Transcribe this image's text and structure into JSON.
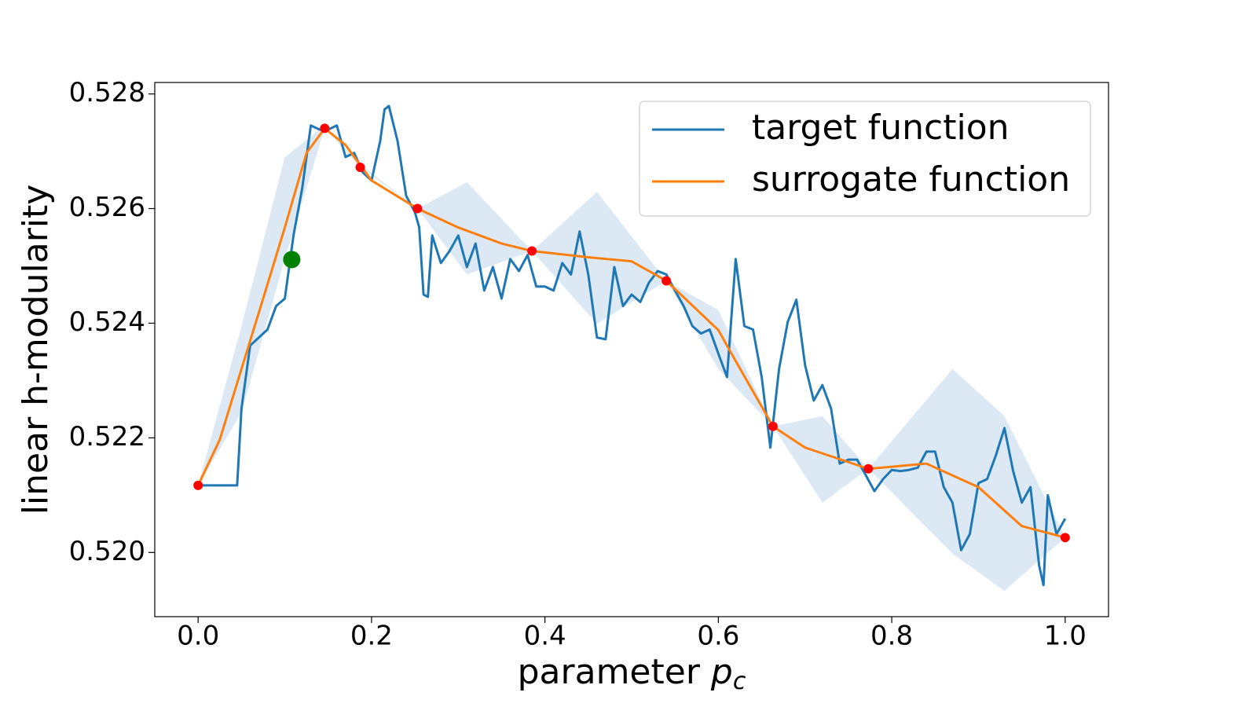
{
  "chart_data": {
    "type": "line",
    "ylabel": "linear h-modularity",
    "xlabel": {
      "text": "parameter",
      "var": "p",
      "sub": "c"
    },
    "xlim": [
      -0.05,
      1.05
    ],
    "ylim": [
      0.51888,
      0.5282
    ],
    "xticks": [
      {
        "value": 0,
        "label": "0.0"
      },
      0.2,
      0.4,
      0.6,
      0.8,
      {
        "value": 1,
        "label": "1.0"
      }
    ],
    "yticks": [
      {
        "value": 0.52,
        "label": "0.520"
      },
      0.522,
      0.524,
      0.526,
      0.528
    ],
    "grid": false,
    "legend": "upper right",
    "band": {
      "color": "#dce9f5",
      "x": [
        0,
        0.05,
        0.1,
        0.146,
        0.187,
        0.253,
        0.31,
        0.385,
        0.46,
        0.54,
        0.6,
        0.663,
        0.72,
        0.773,
        0.87,
        0.93,
        1.0
      ],
      "upper": [
        0.52117,
        0.52395,
        0.5269,
        0.52745,
        0.52677,
        0.526,
        0.52646,
        0.52526,
        0.52629,
        0.52474,
        0.52423,
        0.5222,
        0.52238,
        0.52146,
        0.5232,
        0.52238,
        0.52026
      ],
      "lower": [
        0.52117,
        0.52244,
        0.52512,
        0.5274,
        0.52672,
        0.526,
        0.52485,
        0.52526,
        0.52399,
        0.52474,
        0.5232,
        0.5222,
        0.52087,
        0.52146,
        0.51998,
        0.51933,
        0.52026
      ]
    },
    "series": [
      {
        "name": "target function",
        "color": "#1f77b4",
        "x": [
          0,
          0.045,
          0.05,
          0.06,
          0.07,
          0.08,
          0.09,
          0.1,
          0.105,
          0.11,
          0.12,
          0.13,
          0.14,
          0.15,
          0.16,
          0.17,
          0.18,
          0.19,
          0.2,
          0.21,
          0.215,
          0.22,
          0.23,
          0.24,
          0.25,
          0.255,
          0.26,
          0.265,
          0.27,
          0.28,
          0.29,
          0.3,
          0.31,
          0.32,
          0.33,
          0.34,
          0.35,
          0.36,
          0.37,
          0.38,
          0.39,
          0.4,
          0.41,
          0.42,
          0.43,
          0.44,
          0.45,
          0.46,
          0.47,
          0.48,
          0.49,
          0.5,
          0.51,
          0.52,
          0.53,
          0.54,
          0.55,
          0.56,
          0.57,
          0.58,
          0.59,
          0.6,
          0.61,
          0.62,
          0.63,
          0.64,
          0.65,
          0.66,
          0.67,
          0.68,
          0.69,
          0.7,
          0.71,
          0.72,
          0.73,
          0.74,
          0.75,
          0.76,
          0.77,
          0.78,
          0.79,
          0.8,
          0.81,
          0.82,
          0.83,
          0.84,
          0.85,
          0.86,
          0.87,
          0.88,
          0.89,
          0.9,
          0.91,
          0.92,
          0.93,
          0.94,
          0.95,
          0.96,
          0.97,
          0.975,
          0.98,
          0.99,
          1.0
        ],
        "values": [
          0.52117,
          0.52117,
          0.52251,
          0.52361,
          0.52375,
          0.52389,
          0.5243,
          0.52443,
          0.52498,
          0.52553,
          0.52635,
          0.52745,
          0.52738,
          0.52738,
          0.52745,
          0.5269,
          0.52697,
          0.52663,
          0.52649,
          0.52718,
          0.52773,
          0.52779,
          0.52718,
          0.52622,
          0.52594,
          0.52567,
          0.5245,
          0.52446,
          0.52553,
          0.52505,
          0.52526,
          0.52553,
          0.52498,
          0.52539,
          0.52457,
          0.52498,
          0.52443,
          0.52512,
          0.52491,
          0.52519,
          0.52464,
          0.52464,
          0.52457,
          0.52505,
          0.52485,
          0.5256,
          0.52485,
          0.52375,
          0.52372,
          0.52498,
          0.5243,
          0.5245,
          0.52437,
          0.52471,
          0.52491,
          0.52485,
          0.52457,
          0.5243,
          0.52395,
          0.52382,
          0.52389,
          0.52347,
          0.52306,
          0.52512,
          0.52395,
          0.52389,
          0.52306,
          0.52183,
          0.5232,
          0.52402,
          0.52441,
          0.52327,
          0.52265,
          0.52292,
          0.52251,
          0.52155,
          0.52162,
          0.52162,
          0.52135,
          0.52107,
          0.52128,
          0.52144,
          0.52142,
          0.52144,
          0.52148,
          0.52176,
          0.52176,
          0.52114,
          0.52087,
          0.52004,
          0.52032,
          0.52121,
          0.52128,
          0.52169,
          0.52217,
          0.52142,
          0.52087,
          0.52114,
          0.51977,
          0.51943,
          0.521,
          0.52032,
          0.52059
        ]
      },
      {
        "name": "surrogate function",
        "color": "#ff7f0e",
        "x": [
          0,
          0.025,
          0.05,
          0.075,
          0.1,
          0.125,
          0.146,
          0.17,
          0.2,
          0.253,
          0.3,
          0.35,
          0.385,
          0.45,
          0.5,
          0.54,
          0.6,
          0.62,
          0.663,
          0.7,
          0.773,
          0.84,
          0.9,
          0.95,
          1.0
        ],
        "values": [
          0.52117,
          0.52197,
          0.5232,
          0.52443,
          0.52567,
          0.52697,
          0.5274,
          0.52711,
          0.52649,
          0.526,
          0.52567,
          0.52539,
          0.52526,
          0.52515,
          0.52508,
          0.52474,
          0.52388,
          0.52334,
          0.5222,
          0.52183,
          0.52146,
          0.52155,
          0.52114,
          0.52046,
          0.52026
        ]
      }
    ],
    "samples": {
      "color": "#ff0000",
      "x": [
        0,
        0.146,
        0.187,
        0.253,
        0.385,
        0.54,
        0.663,
        0.773,
        1.0
      ],
      "values": [
        0.52117,
        0.5274,
        0.52672,
        0.526,
        0.52526,
        0.52474,
        0.5222,
        0.52146,
        0.52026
      ]
    },
    "next_point": {
      "color": "#008000",
      "x": 0.108,
      "value": 0.52511
    }
  }
}
